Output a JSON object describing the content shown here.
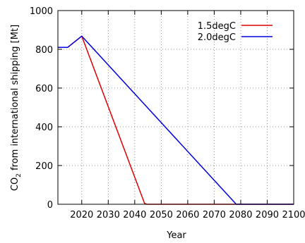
{
  "chart_data": {
    "type": "line",
    "xlabel": "Year",
    "ylabel_main": "CO",
    "ylabel_sub": "2",
    "ylabel_rest": " from international shipping [Mt]",
    "xlim": [
      2011,
      2100
    ],
    "ylim": [
      0,
      1000
    ],
    "xticks": [
      2020,
      2030,
      2040,
      2050,
      2060,
      2070,
      2080,
      2090,
      2100
    ],
    "yticks": [
      0,
      200,
      400,
      600,
      800,
      1000
    ],
    "grid": true,
    "grid_style": "dotted",
    "legend_placement": "top-right",
    "series": [
      {
        "name": "1.5degC",
        "color": "#e00000",
        "x": [
          2011,
          2014.7,
          2020,
          2043.7,
          2044.5,
          2100
        ],
        "y": [
          810,
          810,
          868,
          5,
          0,
          0
        ]
      },
      {
        "name": "2.0degC",
        "color": "#0000e0",
        "x": [
          2011,
          2014.7,
          2020,
          2078.3,
          2100
        ],
        "y": [
          810,
          810,
          868,
          0,
          0
        ]
      }
    ]
  }
}
